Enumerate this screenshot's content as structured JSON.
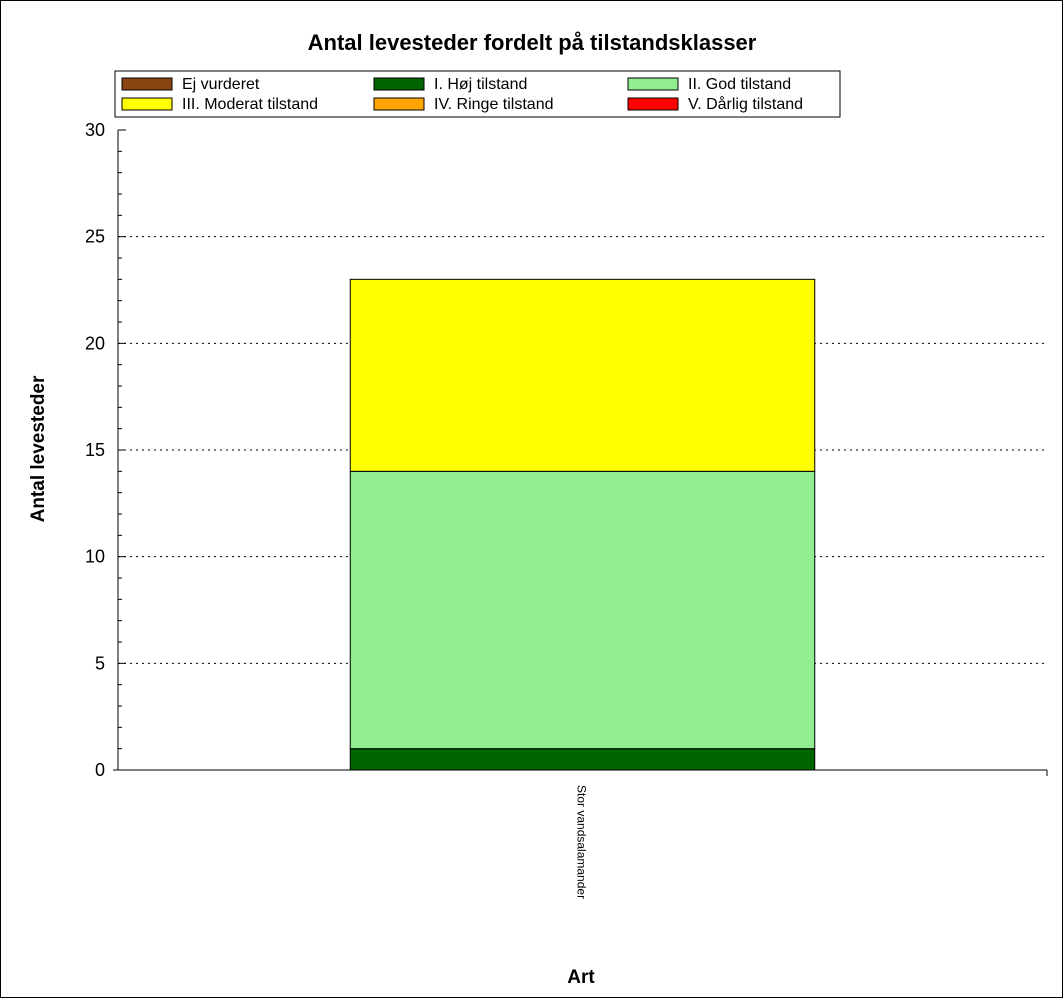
{
  "chart_data": {
    "type": "bar",
    "stacked": true,
    "title": "Antal levesteder fordelt på tilstandsklasser",
    "xlabel": "Art",
    "ylabel": "Antal levesteder",
    "categories": [
      "Stor vandsalamander"
    ],
    "ylim": [
      0,
      30
    ],
    "yticks": [
      0,
      5,
      10,
      15,
      20,
      25,
      30
    ],
    "grid": true,
    "legend_position": "top",
    "series": [
      {
        "name": "Ej vurderet",
        "color": "#8b4513",
        "values": [
          0
        ]
      },
      {
        "name": "I. Høj tilstand",
        "color": "#006400",
        "values": [
          1
        ]
      },
      {
        "name": "II. God tilstand",
        "color": "#90ee90",
        "values": [
          13
        ]
      },
      {
        "name": "III. Moderat tilstand",
        "color": "#ffff00",
        "values": [
          9
        ]
      },
      {
        "name": "IV. Ringe tilstand",
        "color": "#ffa500",
        "values": [
          0
        ]
      },
      {
        "name": "V. Dårlig tilstand",
        "color": "#ff0000",
        "values": [
          0
        ]
      }
    ]
  }
}
